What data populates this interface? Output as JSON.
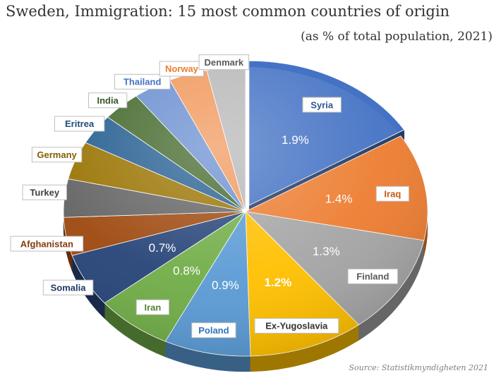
{
  "title": "Sweden, Immigration: 15 most common countries of origin",
  "subtitle": "(as % of total population, 2021)",
  "source": "Source: Statistikmyndigheten 2021",
  "chart_data": {
    "type": "pie",
    "style": "3d",
    "categories": [
      "Syria",
      "Iraq",
      "Finland",
      "Ex-Yugoslavia",
      "Poland",
      "Iran",
      "Somalia",
      "Afghanistan",
      "Turkey",
      "Germany",
      "Eritrea",
      "India",
      "Thailand",
      "Norway",
      "Denmark"
    ],
    "values": [
      1.9,
      1.4,
      1.3,
      1.2,
      0.9,
      0.8,
      0.7,
      0.5,
      0.5,
      0.5,
      0.4,
      0.4,
      0.4,
      0.4,
      0.4
    ],
    "value_labels": [
      "1.9%",
      "1.4%",
      "1.3%",
      "1.2%",
      "0.9%",
      "0.8%",
      "0.7%",
      "",
      "",
      "",
      "",
      "",
      "",
      "",
      ""
    ],
    "colors": [
      "#4472c4",
      "#ed7d31",
      "#a5a5a5",
      "#ffc000",
      "#5b9bd5",
      "#70ad47",
      "#264478",
      "#9e480e",
      "#636363",
      "#997300",
      "#255e91",
      "#43682b",
      "#698ed0",
      "#f1975a",
      "#b7b7b7"
    ],
    "label_text_colors": [
      "#2f5597",
      "#c55a11",
      "#595959",
      "#333333",
      "#2f75b5",
      "#548235",
      "#1f3864",
      "#843c0c",
      "#404040",
      "#7f6000",
      "#1f4e79",
      "#375623",
      "#4472c4",
      "#ed7d31",
      "#595959"
    ],
    "highlight_value_label": "1.2%"
  }
}
